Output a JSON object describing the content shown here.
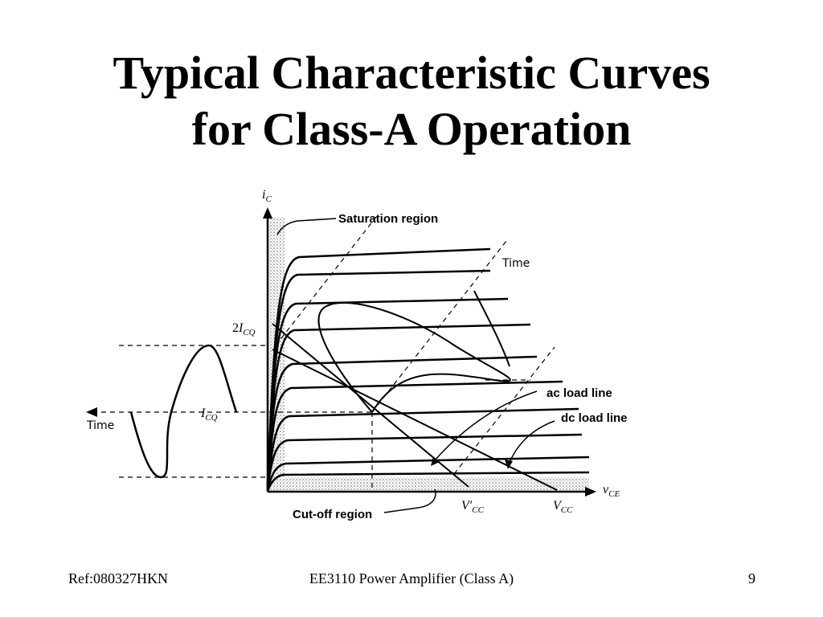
{
  "title": {
    "line1": "Typical Characteristic Curves",
    "line2": "for Class-A Operation"
  },
  "diagram": {
    "y_axis_label": "i",
    "y_axis_sub": "C",
    "x_axis_label": "v",
    "x_axis_sub": "CE",
    "saturation_label": "Saturation region",
    "cutoff_label": "Cut-off region",
    "ac_load_label": "ac load line",
    "dc_load_label": "dc load line",
    "time_top": "Time",
    "time_left": "Time",
    "two_icq_prefix": "2",
    "two_icq_main": "I",
    "two_icq_sub": "CQ",
    "icq_main": "I",
    "icq_sub": "CQ",
    "vcc_prime_main": "V′",
    "vcc_prime_sub": "CC",
    "vcc_main": "V",
    "vcc_sub": "CC"
  },
  "footer": {
    "left": "Ref:080327HKN",
    "center": "EE3110 Power Amplifier (Class A)",
    "page": "9"
  }
}
